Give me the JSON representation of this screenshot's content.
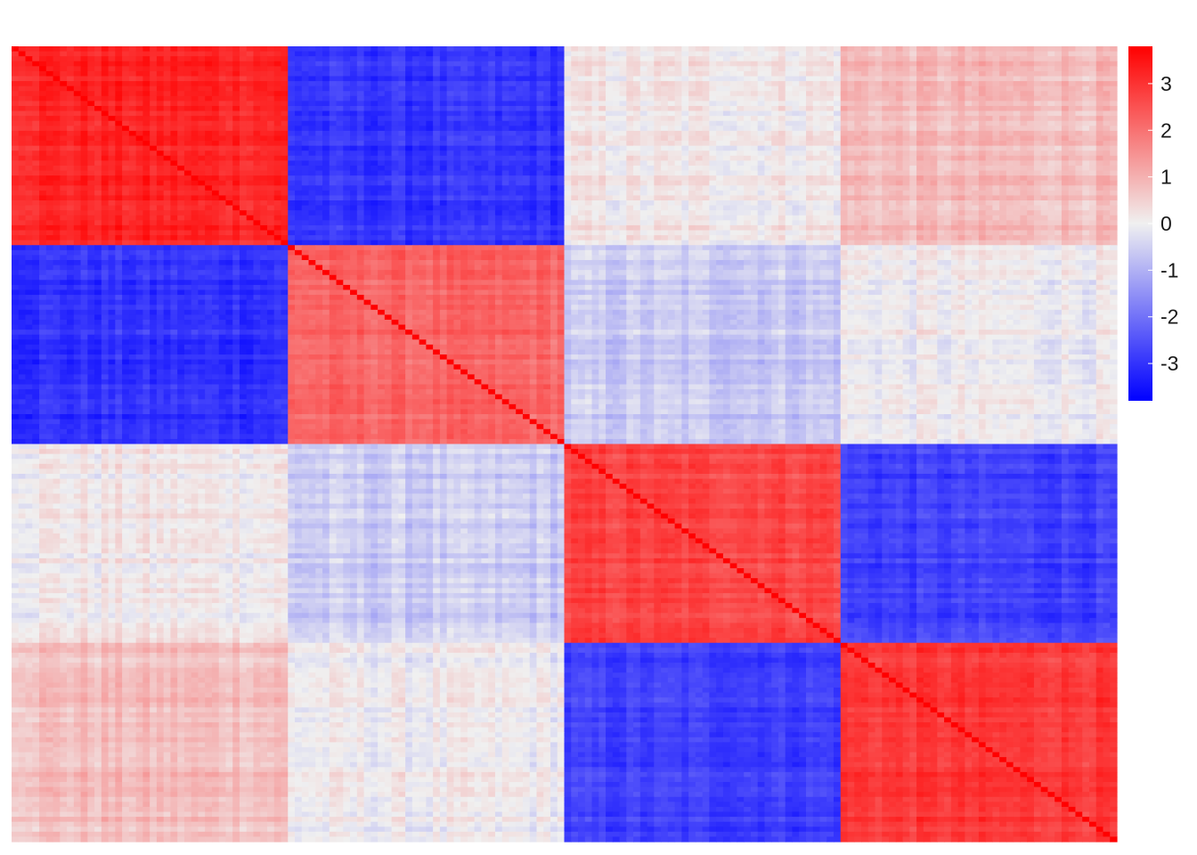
{
  "chart_data": {
    "type": "heatmap",
    "title": "",
    "xlabel": "",
    "ylabel": "",
    "grid": false,
    "legend_position": "right",
    "color_scale": {
      "low_color": "#0000ff",
      "mid_color": "#f0f0f0",
      "high_color": "#ff0000",
      "range": [
        -3.8,
        3.8
      ],
      "ticks": [
        3,
        2,
        1,
        0,
        -1,
        -2,
        -3
      ],
      "tick_labels": [
        "3",
        "2",
        "1",
        "0",
        "-1",
        "-2",
        "-3"
      ]
    },
    "matrix_size": 160,
    "diagonal_value": 3.8,
    "blocks": {
      "count": 4,
      "cells_per_block": 40,
      "mean_values": [
        [
          3.2,
          -3.0,
          0.1,
          0.8
        ],
        [
          -3.0,
          2.2,
          -0.6,
          0.0
        ],
        [
          0.1,
          -0.6,
          2.7,
          -2.8
        ],
        [
          0.8,
          0.0,
          -2.8,
          2.9
        ]
      ]
    }
  }
}
